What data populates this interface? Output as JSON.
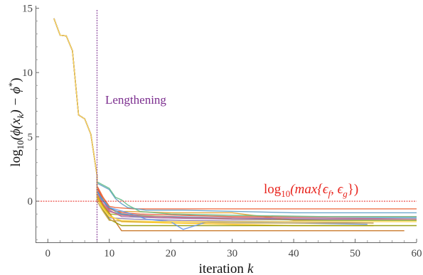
{
  "chart_data": {
    "type": "line",
    "title": "",
    "xlabel_main": "iteration",
    "xlabel_var": "k",
    "ylabel_pre": "log",
    "ylabel_sub": "10",
    "ylabel_main": "(ϕ(x",
    "ylabel_sub2": "k",
    "ylabel_tail": ") − ϕ",
    "ylabel_sup": "*",
    "ylabel_close": ")",
    "xlim": [
      -2,
      60
    ],
    "ylim": [
      -3.2,
      15.2
    ],
    "xticks": [
      0,
      10,
      20,
      30,
      40,
      50,
      60
    ],
    "yticks": [
      0,
      5,
      10,
      15
    ],
    "xtick_labels": [
      "0",
      "10",
      "20",
      "30",
      "40",
      "50",
      "60"
    ],
    "ytick_labels": [
      "0",
      "5",
      "10",
      "15"
    ],
    "grid": false,
    "vline": {
      "x": 8,
      "color": "#7b2d8e",
      "label": "Lengthening"
    },
    "hline": {
      "y": 0,
      "color": "#e8241d",
      "label_pre": "log",
      "label_sub": "10",
      "label_main": "(max{ϵ",
      "label_sub_f": "f",
      "label_mid": ", ϵ",
      "label_sub_g": "g",
      "label_close": "})"
    },
    "common_prefix": [
      [
        1,
        14.2
      ],
      [
        2,
        12.9
      ],
      [
        3,
        12.85
      ],
      [
        4,
        11.7
      ],
      [
        5,
        6.7
      ],
      [
        6,
        6.4
      ],
      [
        7,
        5.2
      ],
      [
        8,
        2.0
      ]
    ],
    "series": [
      {
        "color": "#5e81b5",
        "points": [
          [
            8,
            0.8
          ],
          [
            9,
            -0.2
          ],
          [
            10,
            -0.8
          ],
          [
            12,
            -1.0
          ],
          [
            15,
            -1.1
          ],
          [
            22,
            -1.3
          ],
          [
            30,
            -1.3
          ],
          [
            40,
            -1.4
          ],
          [
            48,
            -1.4
          ],
          [
            60,
            -1.4
          ]
        ]
      },
      {
        "color": "#e19c24",
        "points": [
          [
            8,
            1.0
          ],
          [
            9,
            0.2
          ],
          [
            10,
            -0.5
          ],
          [
            11,
            -0.8
          ],
          [
            13,
            -0.8
          ],
          [
            20,
            -0.9
          ],
          [
            30,
            -0.9
          ],
          [
            40,
            -1.5
          ],
          [
            52,
            -1.5
          ],
          [
            60,
            -1.5
          ]
        ]
      },
      {
        "color": "#8fb032",
        "points": [
          [
            8,
            0.5
          ],
          [
            9,
            -0.4
          ],
          [
            10,
            -1.0
          ],
          [
            13,
            -1.1
          ],
          [
            20,
            -1.2
          ],
          [
            30,
            -1.4
          ],
          [
            46,
            -1.5
          ],
          [
            60,
            -1.5
          ]
        ]
      },
      {
        "color": "#eb6235",
        "points": [
          [
            8,
            1.2
          ],
          [
            9,
            0.3
          ],
          [
            10,
            -0.4
          ],
          [
            11,
            -0.5
          ],
          [
            14,
            -0.6
          ],
          [
            25,
            -0.6
          ],
          [
            60,
            -0.6
          ]
        ]
      },
      {
        "color": "#8778b3",
        "points": [
          [
            8,
            0.2
          ],
          [
            9,
            -0.6
          ],
          [
            10,
            -1.3
          ],
          [
            14,
            -1.4
          ],
          [
            22,
            -1.5
          ],
          [
            40,
            -1.6
          ],
          [
            53,
            -1.7
          ]
        ]
      },
      {
        "color": "#c56e1a",
        "points": [
          [
            8,
            0.6
          ],
          [
            9,
            -0.3
          ],
          [
            10,
            -0.9
          ],
          [
            12,
            -2.3
          ],
          [
            30,
            -2.3
          ],
          [
            50,
            -2.3
          ],
          [
            58,
            -2.3
          ]
        ]
      },
      {
        "color": "#5d9ec7",
        "points": [
          [
            8,
            1.4
          ],
          [
            10,
            0.9
          ],
          [
            11,
            0.2
          ],
          [
            12,
            -0.2
          ],
          [
            13,
            -0.5
          ],
          [
            16,
            -0.7
          ],
          [
            22,
            -0.7
          ],
          [
            40,
            -0.9
          ],
          [
            60,
            -0.9
          ]
        ]
      },
      {
        "color": "#ffbf00",
        "points": [
          [
            8,
            0.4
          ],
          [
            9,
            -0.5
          ],
          [
            10,
            -1.1
          ],
          [
            12,
            -1.6
          ],
          [
            20,
            -1.7
          ],
          [
            30,
            -1.8
          ],
          [
            40,
            -1.9
          ],
          [
            53,
            -1.9
          ]
        ]
      },
      {
        "color": "#a5609d",
        "points": [
          [
            8,
            0.9
          ],
          [
            9,
            0.0
          ],
          [
            10,
            -0.7
          ],
          [
            12,
            -1.2
          ],
          [
            18,
            -1.3
          ],
          [
            30,
            -1.4
          ],
          [
            45,
            -1.4
          ],
          [
            60,
            -1.4
          ]
        ]
      },
      {
        "color": "#929600",
        "points": [
          [
            8,
            0.3
          ],
          [
            9,
            -0.7
          ],
          [
            10,
            -1.4
          ],
          [
            12,
            -1.9
          ],
          [
            20,
            -1.9
          ],
          [
            30,
            -1.9
          ],
          [
            45,
            -1.9
          ],
          [
            60,
            -1.9
          ]
        ]
      },
      {
        "color": "#e95536",
        "points": [
          [
            8,
            1.1
          ],
          [
            9,
            0.1
          ],
          [
            10,
            -0.6
          ],
          [
            12,
            -0.9
          ],
          [
            15,
            -1.0
          ],
          [
            22,
            -1.1
          ],
          [
            30,
            -1.2
          ],
          [
            45,
            -1.2
          ],
          [
            60,
            -1.2
          ]
        ]
      },
      {
        "color": "#6395ec",
        "points": [
          [
            8,
            0.7
          ],
          [
            9,
            0.1
          ],
          [
            10,
            -0.5
          ],
          [
            13,
            -0.9
          ],
          [
            16,
            -1.4
          ],
          [
            20,
            -1.6
          ],
          [
            22,
            -2.2
          ],
          [
            26,
            -1.6
          ],
          [
            40,
            -1.7
          ],
          [
            52,
            -1.8
          ]
        ]
      },
      {
        "color": "#caa34d",
        "points": [
          [
            8,
            0.0
          ],
          [
            9,
            -0.8
          ],
          [
            10,
            -1.5
          ],
          [
            14,
            -1.6
          ],
          [
            20,
            -1.6
          ],
          [
            30,
            -1.7
          ],
          [
            40,
            -1.7
          ],
          [
            53,
            -1.7
          ]
        ]
      },
      {
        "color": "#66bc88",
        "points": [
          [
            8,
            1.5
          ],
          [
            10,
            1.0
          ],
          [
            11,
            0.3
          ],
          [
            12,
            0.1
          ],
          [
            13,
            -0.3
          ],
          [
            15,
            -0.8
          ],
          [
            20,
            -1.0
          ],
          [
            30,
            -1.1
          ],
          [
            45,
            -1.2
          ],
          [
            60,
            -1.2
          ]
        ]
      },
      {
        "color": "#4a9cce",
        "points": [
          [
            8,
            0.8
          ],
          [
            9,
            0.0
          ],
          [
            10,
            -0.5
          ],
          [
            12,
            -1.0
          ],
          [
            14,
            -1.2
          ],
          [
            20,
            -1.2
          ],
          [
            30,
            -1.3
          ],
          [
            45,
            -1.3
          ],
          [
            60,
            -1.3
          ]
        ]
      },
      {
        "color": "#d8748a",
        "points": [
          [
            8,
            0.6
          ],
          [
            9,
            -0.2
          ],
          [
            10,
            -0.8
          ],
          [
            12,
            -1.1
          ],
          [
            17,
            -1.2
          ],
          [
            25,
            -1.3
          ],
          [
            45,
            -1.3
          ],
          [
            60,
            -1.4
          ]
        ]
      },
      {
        "color": "#ffdc52",
        "points": [
          [
            8,
            0.2
          ],
          [
            9,
            -0.6
          ],
          [
            10,
            -1.2
          ],
          [
            12,
            -1.5
          ],
          [
            18,
            -1.6
          ],
          [
            30,
            -1.6
          ],
          [
            45,
            -1.6
          ],
          [
            60,
            -1.6
          ]
        ]
      }
    ]
  }
}
